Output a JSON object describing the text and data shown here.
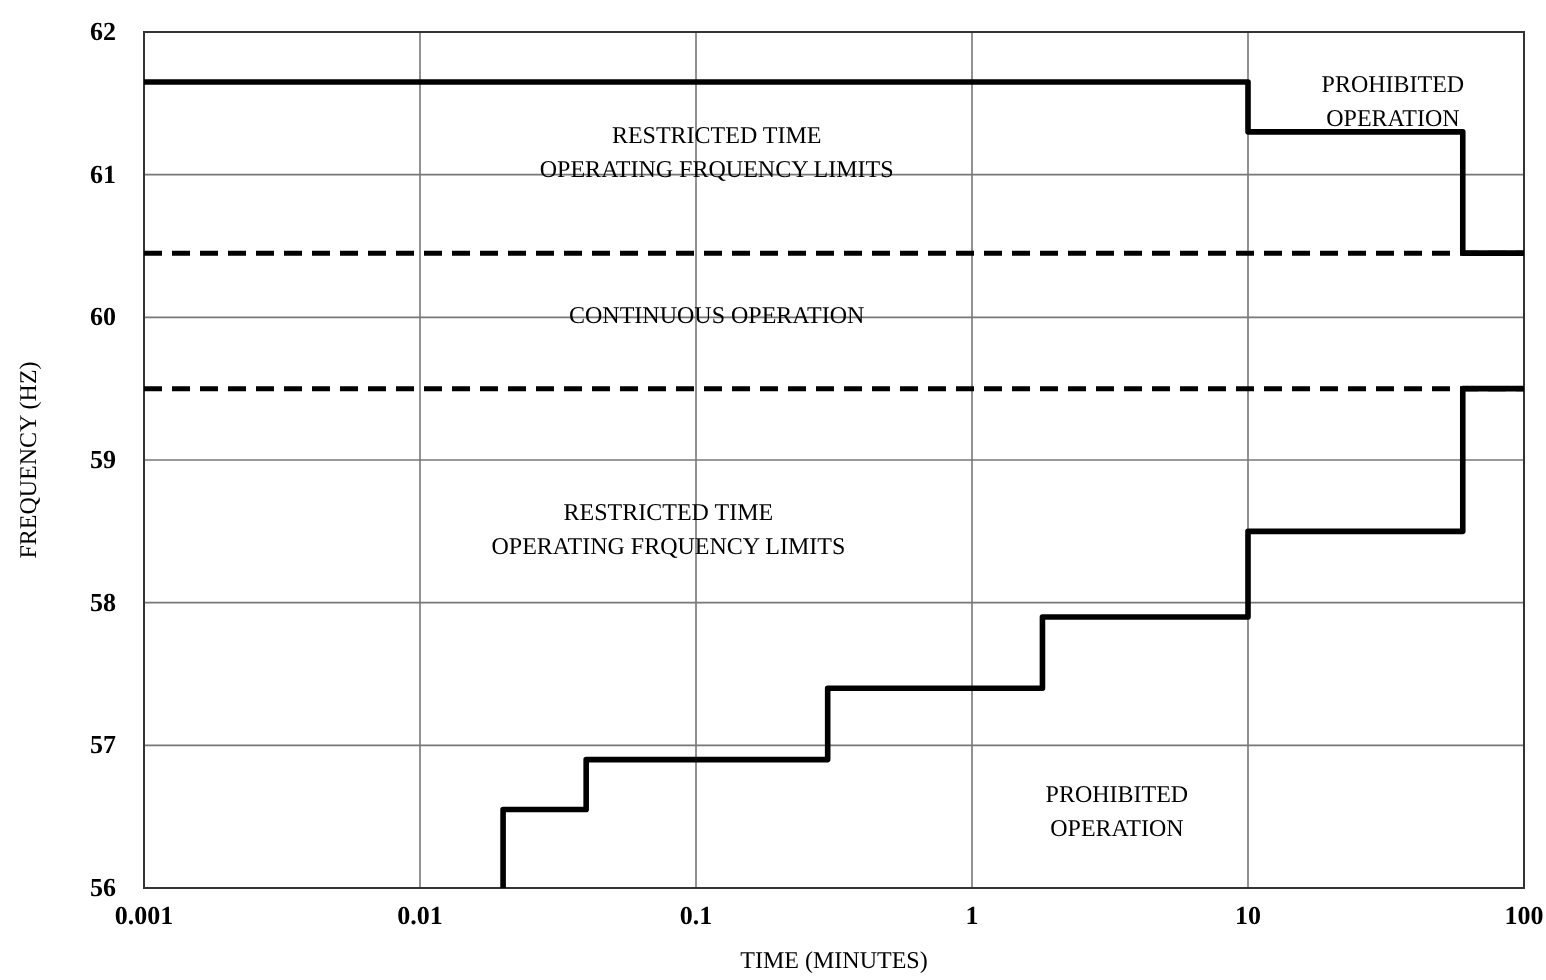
{
  "chart_data": {
    "type": "step",
    "xlabel": "TIME (MINUTES)",
    "ylabel": "FREQUENCY (HZ)",
    "log": "x",
    "xlim": [
      0.001,
      100
    ],
    "xticks": [
      0.001,
      0.01,
      0.1,
      1,
      10,
      100
    ],
    "ylim": [
      56,
      62
    ],
    "yticks": [
      56,
      57,
      58,
      59,
      60,
      61,
      62
    ],
    "grid": true,
    "series": [
      {
        "color": "#000000",
        "x": [
          0.001,
          10,
          60,
          100
        ],
        "values": [
          61.65,
          61.3,
          60.45,
          60.45
        ]
      },
      {
        "color": "#000000",
        "x": [
          0.02,
          0.02,
          0.04,
          0.3,
          1.8,
          10,
          60,
          100
        ],
        "values": [
          56,
          56.55,
          56.9,
          57.4,
          57.9,
          58.5,
          59.5,
          59.5
        ]
      }
    ],
    "ref_lines": [
      {
        "axis": "y",
        "value": 60.45,
        "line_style": "dashed",
        "color": "#000000"
      },
      {
        "axis": "y",
        "value": 59.5,
        "line_style": "dashed",
        "color": "#000000"
      }
    ],
    "annotations": [
      "RESTRICTED TIME\nOPERATING FRQUENCY LIMITS",
      "PROHIBITED\nOPERATION",
      "CONTINUOUS OPERATION",
      "RESTRICTED TIME\nOPERATING FRQUENCY LIMITS",
      "PROHIBITED\nOPERATION"
    ]
  }
}
